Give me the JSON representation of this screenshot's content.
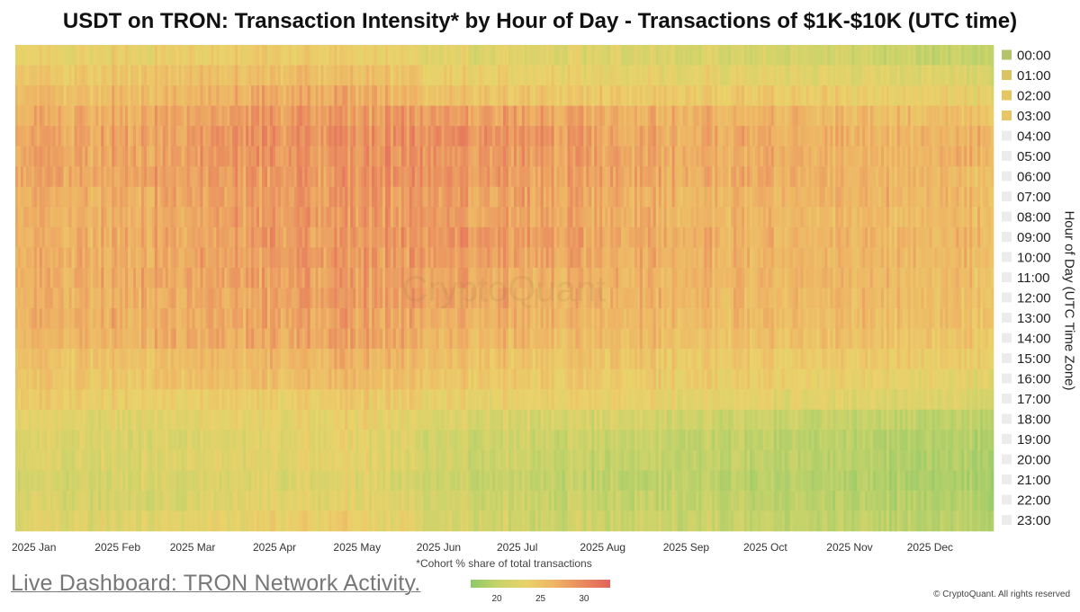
{
  "title": "USDT on TRON: Transaction Intensity* by Hour of Day - Transactions of $1K-$10K (UTC time)",
  "ylabel": "Hour of Day (UTC Time Zone)",
  "footnote": "*Cohort % share of total transactions",
  "link_text": "Live Dashboard: TRON Network Activity.",
  "watermark": "CryptoQuant",
  "copyright": "© CryptoQuant. All rights reserved",
  "colors": {
    "low": "#8cc96a",
    "mid": "#ead26a",
    "high": "#e1645a",
    "legend_muted": "#ececec"
  },
  "legend_items": [
    "00:00",
    "01:00",
    "02:00",
    "03:00",
    "04:00",
    "05:00",
    "06:00",
    "07:00",
    "08:00",
    "09:00",
    "10:00",
    "11:00",
    "12:00",
    "13:00",
    "14:00",
    "15:00",
    "16:00",
    "17:00",
    "18:00",
    "19:00",
    "20:00",
    "21:00",
    "22:00",
    "23:00"
  ],
  "chart_data": {
    "type": "heatmap",
    "x_tick_labels": [
      "2025 Jan",
      "2025 Feb",
      "2025 Mar",
      "2025 Apr",
      "2025 May",
      "2025 Jun",
      "2025 Jul",
      "2025 Aug",
      "2025 Sep",
      "2025 Oct",
      "2025 Nov",
      "2025 Dec"
    ],
    "x_range": [
      "2025-01-01",
      "2025-12-31"
    ],
    "y_categories": [
      "00:00",
      "01:00",
      "02:00",
      "03:00",
      "04:00",
      "05:00",
      "06:00",
      "07:00",
      "08:00",
      "09:00",
      "10:00",
      "11:00",
      "12:00",
      "13:00",
      "14:00",
      "15:00",
      "16:00",
      "17:00",
      "18:00",
      "19:00",
      "20:00",
      "21:00",
      "22:00",
      "23:00"
    ],
    "color_scale": {
      "min": 17,
      "max": 33,
      "ticks": [
        20,
        25,
        30
      ]
    },
    "months": [
      "Jan",
      "Feb",
      "Mar",
      "Apr",
      "May",
      "Jun",
      "Jul",
      "Aug",
      "Sep",
      "Oct",
      "Nov",
      "Dec"
    ],
    "values_by_hour_month": [
      [
        24.5,
        25,
        25.5,
        25.5,
        25.5,
        24,
        24,
        23.5,
        23.5,
        23,
        22.5,
        21.5
      ],
      [
        26,
        26.5,
        27,
        27,
        27,
        25.5,
        25,
        24.5,
        24.5,
        24.5,
        24,
        23.5
      ],
      [
        27,
        27.5,
        28,
        28.5,
        28.5,
        27,
        26.5,
        26,
        26,
        26,
        25.5,
        25
      ],
      [
        28,
        28.5,
        29,
        29.5,
        29.5,
        29.5,
        29,
        28.5,
        28,
        28,
        27.5,
        27
      ],
      [
        28.5,
        29,
        29.5,
        30,
        30,
        30.5,
        30,
        29,
        28.5,
        28.5,
        28,
        28
      ],
      [
        28.5,
        29,
        29.5,
        30,
        30,
        30,
        29.5,
        29,
        28.5,
        28.5,
        28,
        28
      ],
      [
        28.5,
        29,
        29.5,
        29.5,
        30,
        30,
        29.5,
        29,
        28.5,
        28.5,
        28,
        27.5
      ],
      [
        28,
        28.5,
        29,
        29.5,
        29.5,
        29.5,
        29,
        28.5,
        28,
        28,
        28,
        27.5
      ],
      [
        28,
        28.5,
        29,
        29.5,
        29.5,
        29.5,
        29,
        28.5,
        28,
        28,
        27.5,
        27.5
      ],
      [
        28,
        28.5,
        29,
        29.5,
        29.5,
        30,
        29.5,
        29,
        28.5,
        28,
        28,
        27.5
      ],
      [
        28,
        28.5,
        29,
        29.5,
        29.5,
        29.5,
        29,
        28.5,
        28,
        28,
        27.5,
        27.5
      ],
      [
        28,
        28.5,
        29,
        29,
        29.5,
        29,
        28.5,
        28,
        28,
        28,
        27.5,
        27
      ],
      [
        28,
        28.5,
        28.5,
        29,
        29.5,
        29,
        28.5,
        28,
        28,
        27.5,
        27.5,
        27
      ],
      [
        28,
        28.5,
        28.5,
        29,
        29,
        28.5,
        28,
        28,
        27.5,
        27.5,
        27,
        27
      ],
      [
        27.5,
        28,
        28.5,
        28.5,
        29,
        28,
        27.5,
        27.5,
        27,
        27,
        27,
        26.5
      ],
      [
        26.5,
        27,
        27.5,
        27.5,
        28,
        27,
        26.5,
        26.5,
        26,
        26,
        26,
        25.5
      ],
      [
        26,
        26.5,
        27,
        27,
        27.5,
        26.5,
        26,
        26,
        25.5,
        25.5,
        25,
        24.5
      ],
      [
        25.5,
        25.5,
        25.5,
        25.5,
        26,
        25,
        25,
        25,
        24.5,
        24.5,
        24,
        23.5
      ],
      [
        24,
        24,
        24.5,
        24.5,
        25,
        23.5,
        23,
        23,
        22.5,
        22,
        21.5,
        21
      ],
      [
        23,
        23.5,
        23.5,
        24,
        24.5,
        22.5,
        22,
        22,
        21.5,
        21,
        20.5,
        20
      ],
      [
        23,
        23.5,
        24,
        24,
        24.5,
        22.5,
        22,
        21.5,
        21.5,
        21,
        20.5,
        20
      ],
      [
        22.5,
        23,
        23.5,
        23.5,
        24,
        22,
        21.5,
        21,
        21,
        20.5,
        20,
        19.5
      ],
      [
        23,
        23,
        23.5,
        24,
        24.5,
        22.5,
        22,
        21.5,
        21.5,
        21,
        20.5,
        20
      ],
      [
        23.5,
        24,
        24.5,
        25,
        25.5,
        23,
        22.5,
        22,
        22,
        21.5,
        21,
        20.5
      ]
    ]
  }
}
